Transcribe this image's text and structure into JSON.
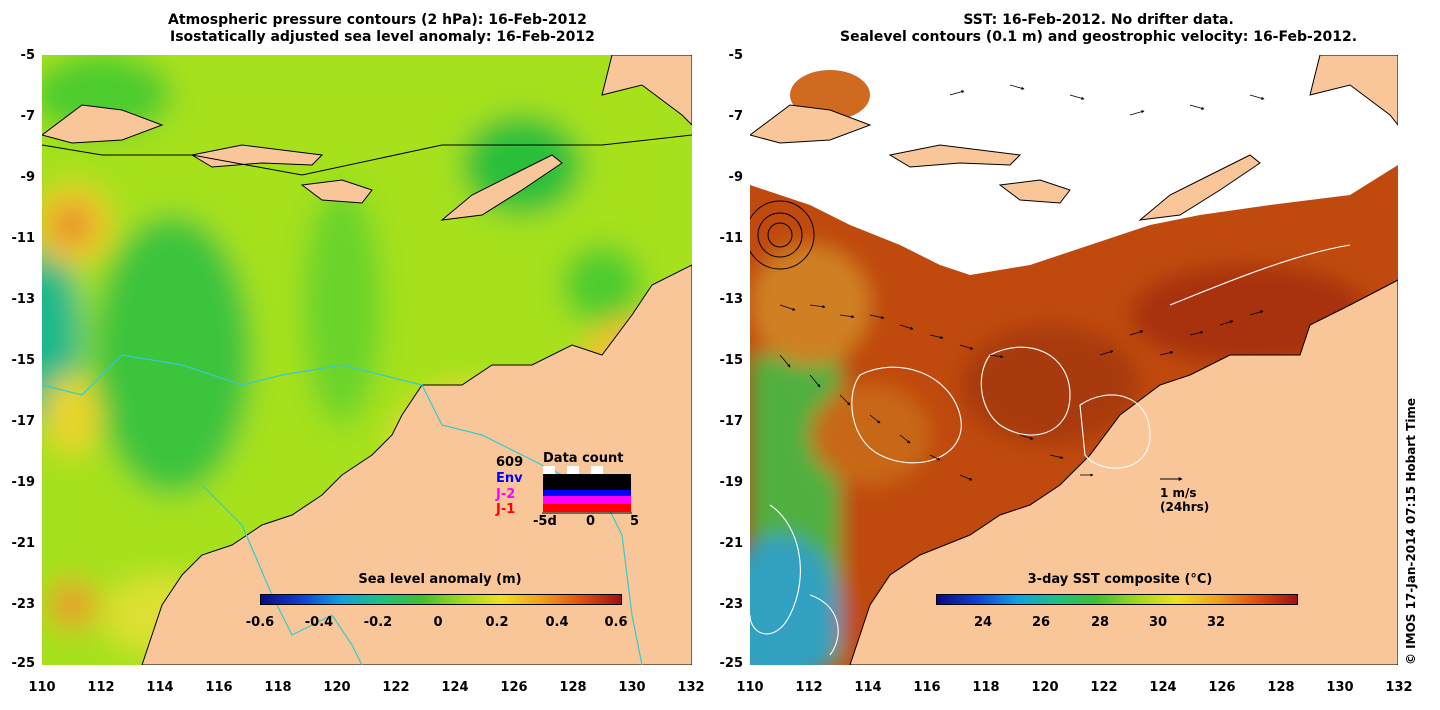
{
  "left_panel": {
    "title_line1": "Atmospheric pressure contours (2 hPa): 16-Feb-2012",
    "title_line2": "Isostatically adjusted sea level anomaly: 16-Feb-2012",
    "y_ticks": [
      "-5",
      "-7",
      "-9",
      "-11",
      "-13",
      "-15",
      "-17",
      "-19",
      "-21",
      "-23",
      "-25"
    ],
    "x_ticks": [
      "110",
      "112",
      "114",
      "116",
      "118",
      "120",
      "122",
      "124",
      "126",
      "128",
      "130",
      "132"
    ],
    "colorbar_label": "Sea level anomaly (m)",
    "colorbar_ticks": [
      "-0.6",
      "-0.4",
      "-0.2",
      "0",
      "0.2",
      "0.4",
      "0.6"
    ],
    "data_count": {
      "title": "Data count",
      "count_value": "609",
      "legend": [
        {
          "label": "Env",
          "color": "#0000ff"
        },
        {
          "label": "J-2",
          "color": "#ff00ff"
        },
        {
          "label": "J-1",
          "color": "#ff0000"
        }
      ],
      "x_ticks": [
        "-5d",
        "0",
        "5"
      ]
    }
  },
  "right_panel": {
    "title_line1": "SST: 16-Feb-2012. No drifter data.",
    "title_line2": "Sealevel contours (0.1 m) and geostrophic velocity: 16-Feb-2012.",
    "y_ticks": [
      "-5",
      "-7",
      "-9",
      "-11",
      "-13",
      "-15",
      "-17",
      "-19",
      "-21",
      "-23",
      "-25"
    ],
    "x_ticks": [
      "110",
      "112",
      "114",
      "116",
      "118",
      "120",
      "122",
      "124",
      "126",
      "128",
      "130",
      "132"
    ],
    "colorbar_label": "3-day SST composite (°C)",
    "colorbar_ticks": [
      "24",
      "26",
      "28",
      "30",
      "32"
    ],
    "velocity_scale": {
      "line1": "1 m/s",
      "line2": "(24hrs)"
    }
  },
  "copyright": "© IMOS 17-Jan-2014 07:15 Hobart Time",
  "colors": {
    "land": "#f9c69a",
    "sla_background": "#a6e11e",
    "sst_background": "#c04a10",
    "coast": "#000000",
    "isobath": "#33cccc"
  }
}
